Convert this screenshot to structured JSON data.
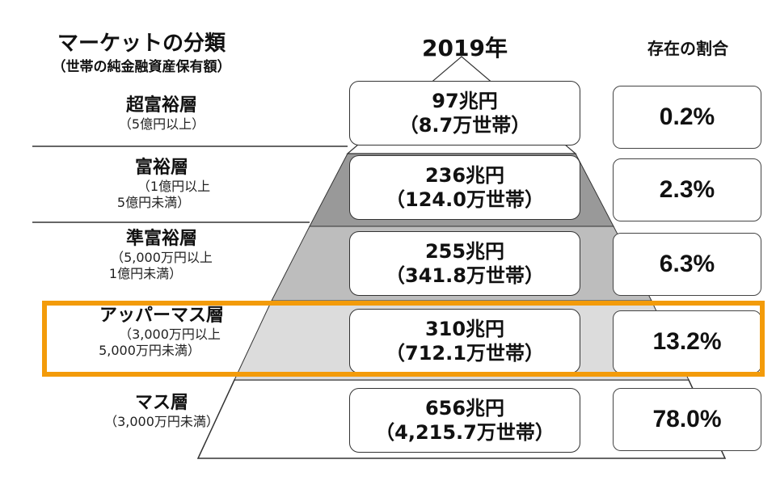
{
  "header": {
    "category_title": "マーケットの分類",
    "category_subtitle": "（世帯の純金融資産保有額）",
    "year": "2019年",
    "ratio_title": "存在の割合"
  },
  "tiers": [
    {
      "name": "超富裕層",
      "range_line1": "（5億円以上）",
      "range_line2": "",
      "assets": "97兆円",
      "households": "（8.7万世帯）",
      "ratio": "0.2%"
    },
    {
      "name": "富裕層",
      "range_line1": "（1億円以上",
      "range_line2": "5億円未満）",
      "assets": "236兆円",
      "households": "（124.0万世帯）",
      "ratio": "2.3%"
    },
    {
      "name": "準富裕層",
      "range_line1": "（5,000万円以上",
      "range_line2": "1億円未満）",
      "assets": "255兆円",
      "households": "（341.8万世帯）",
      "ratio": "6.3%"
    },
    {
      "name": "アッパーマス層",
      "range_line1": "（3,000万円以上",
      "range_line2": "5,000万円未満）",
      "assets": "310兆円",
      "households": "（712.1万世帯）",
      "ratio": "13.2%"
    },
    {
      "name": "マス層",
      "range_line1": "（3,000万円未満）",
      "range_line2": "",
      "assets": "656兆円",
      "households": "（4,215.7万世帯）",
      "ratio": "78.0%"
    }
  ],
  "highlighted_tier": "アッパーマス層",
  "colors": {
    "highlight_border": "#f39b0a",
    "pyramid_dark": "#999999",
    "pyramid_mid": "#bdbdbd",
    "pyramid_light": "#dcdcdc",
    "pyramid_white": "#ffffff"
  }
}
